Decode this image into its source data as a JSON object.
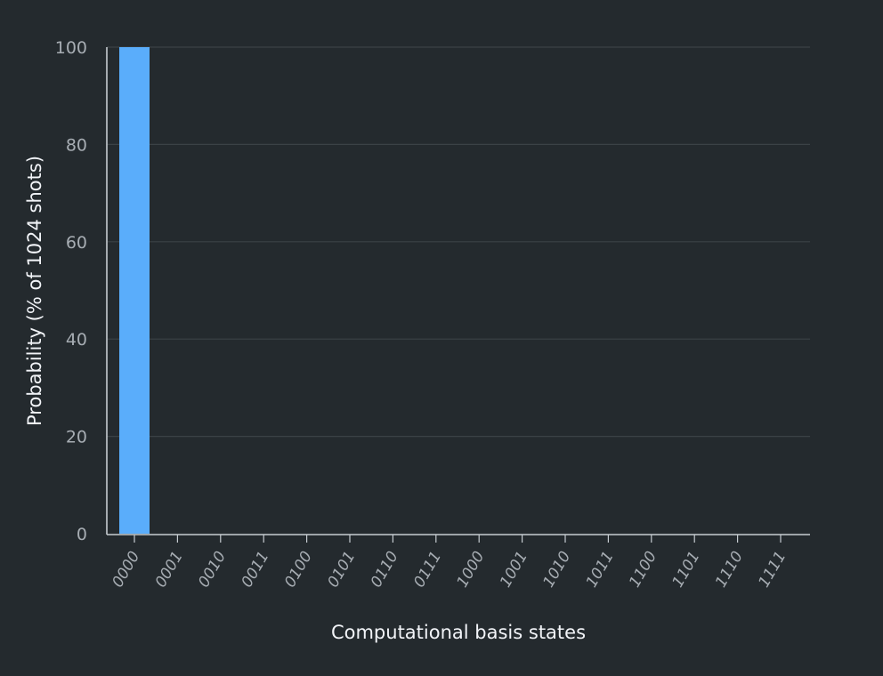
{
  "chart_data": {
    "type": "bar",
    "xlabel": "Computational basis states",
    "ylabel": "Probability (% of 1024 shots)",
    "categories": [
      "0000",
      "0001",
      "0010",
      "0011",
      "0100",
      "0101",
      "0110",
      "0111",
      "1000",
      "1001",
      "1010",
      "1011",
      "1100",
      "1101",
      "1110",
      "1111"
    ],
    "values": [
      100,
      0,
      0,
      0,
      0,
      0,
      0,
      0,
      0,
      0,
      0,
      0,
      0,
      0,
      0,
      0
    ],
    "ylim": [
      0,
      100
    ],
    "yticks": [
      0,
      20,
      40,
      60,
      80,
      100
    ],
    "grid": true,
    "legend": "none",
    "colors": {
      "background": "#242a2e",
      "bar": "#5aadfb",
      "grid": "#3b4246",
      "axis": "#c6ccd1",
      "tick_text": "#a7adb3",
      "title_text": "#f2f4f8"
    }
  }
}
